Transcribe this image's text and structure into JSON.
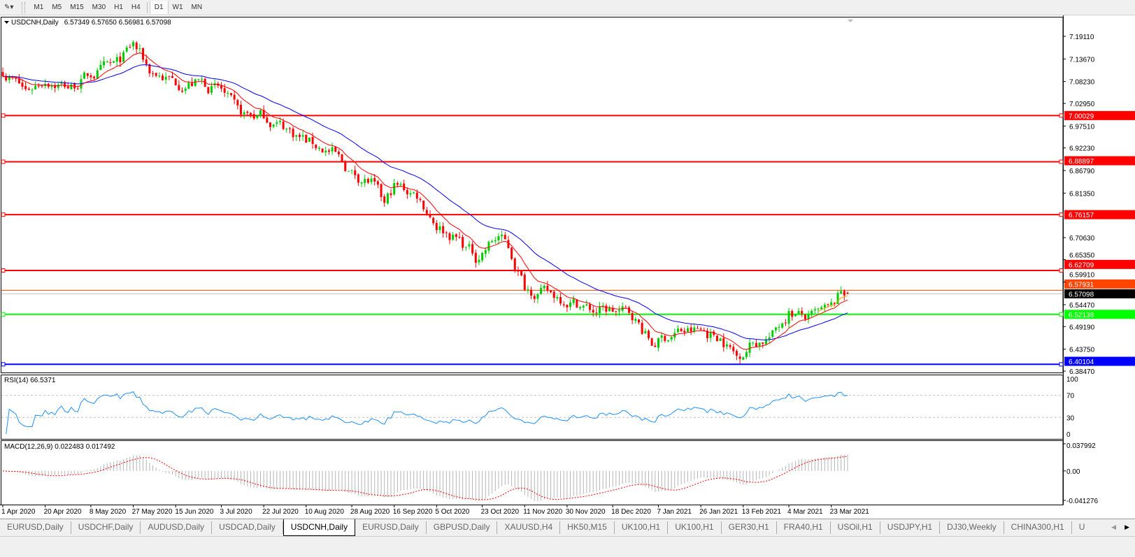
{
  "toolbar": {
    "timeframes": [
      "M1",
      "M5",
      "M15",
      "M30",
      "H1",
      "H4",
      "D1",
      "W1",
      "MN"
    ],
    "active_timeframe": "D1"
  },
  "chart": {
    "header": "USDCNH,Daily",
    "ohlc": "6.57349 6.57650 6.56981 6.57098",
    "price_axis": [
      "7.19110",
      "7.13670",
      "7.08230",
      "7.02950",
      "6.97510",
      "6.92230",
      "6.86790",
      "6.81350",
      "6.70630",
      "6.65350",
      "6.59910",
      "6.54470",
      "6.49190",
      "6.43750",
      "6.38470"
    ],
    "levels": [
      {
        "label": "7.00029",
        "color": "#ff0000"
      },
      {
        "label": "6.88897",
        "color": "#ff0000"
      },
      {
        "label": "6.76157",
        "color": "#ff0000"
      },
      {
        "label": "6.62709",
        "color": "#ff0000"
      },
      {
        "label": "6.57931",
        "color": "#ff4500"
      },
      {
        "label": "6.57098",
        "color": "#000000"
      },
      {
        "label": "6.52138",
        "color": "#00ff00"
      },
      {
        "label": "6.40104",
        "color": "#0000ff"
      }
    ],
    "colors": {
      "bull": "#00cc00",
      "bear": "#ff0000",
      "ma_fast": "#ff0000",
      "ma_slow": "#0000ff",
      "ma_short": "#ffa500",
      "rsi": "#1e90ff",
      "macd_hist": "#b4b4b4",
      "macd_signal": "#ff0000"
    }
  },
  "rsi": {
    "label": "RSI(14) 66.5371",
    "axis": [
      "100",
      "70",
      "30",
      "0"
    ]
  },
  "macd": {
    "label": "MACD(12,26,9) 0.022483 0.017492",
    "axis": [
      "0.037992",
      "0.00",
      "-0.041276"
    ]
  },
  "chart_data": {
    "type": "candlestick",
    "symbol": "USDCNH",
    "timeframe": "Daily",
    "last_bar": {
      "open": 6.57349,
      "high": 6.5765,
      "low": 6.56981,
      "close": 6.57098
    },
    "ylim": [
      6.3847,
      7.1911
    ],
    "approx_closes": [
      [
        "2020-04-01",
        7.11
      ],
      [
        "2020-04-10",
        7.06
      ],
      [
        "2020-04-20",
        7.09
      ],
      [
        "2020-04-30",
        7.07
      ],
      [
        "2020-05-08",
        7.1
      ],
      [
        "2020-05-20",
        7.12
      ],
      [
        "2020-05-27",
        7.17
      ],
      [
        "2020-06-03",
        7.11
      ],
      [
        "2020-06-15",
        7.08
      ],
      [
        "2020-06-25",
        7.08
      ],
      [
        "2020-07-03",
        7.06
      ],
      [
        "2020-07-10",
        7.0
      ],
      [
        "2020-07-22",
        7.0
      ],
      [
        "2020-07-31",
        6.97
      ],
      [
        "2020-08-10",
        6.94
      ],
      [
        "2020-08-20",
        6.91
      ],
      [
        "2020-08-28",
        6.86
      ],
      [
        "2020-09-07",
        6.84
      ],
      [
        "2020-09-11",
        6.78
      ],
      [
        "2020-09-16",
        6.83
      ],
      [
        "2020-09-25",
        6.81
      ],
      [
        "2020-10-05",
        6.74
      ],
      [
        "2020-10-14",
        6.7
      ],
      [
        "2020-10-21",
        6.66
      ],
      [
        "2020-10-30",
        6.71
      ],
      [
        "2020-11-04",
        6.68
      ],
      [
        "2020-11-11",
        6.59
      ],
      [
        "2020-11-20",
        6.57
      ],
      [
        "2020-11-30",
        6.56
      ],
      [
        "2020-12-10",
        6.53
      ],
      [
        "2020-12-18",
        6.53
      ],
      [
        "2020-12-28",
        6.52
      ],
      [
        "2021-01-05",
        6.45
      ],
      [
        "2021-01-15",
        6.48
      ],
      [
        "2021-01-26",
        6.48
      ],
      [
        "2021-02-03",
        6.47
      ],
      [
        "2021-02-10",
        6.42
      ],
      [
        "2021-02-16",
        6.45
      ],
      [
        "2021-02-25",
        6.47
      ],
      [
        "2021-03-04",
        6.53
      ],
      [
        "2021-03-12",
        6.51
      ],
      [
        "2021-03-23",
        6.53
      ],
      [
        "2021-03-26",
        6.57
      ],
      [
        "2021-03-30",
        6.571
      ]
    ],
    "x_ticks": [
      "1 Apr 2020",
      "20 Apr 2020",
      "8 May 2020",
      "27 May 2020",
      "15 Jun 2020",
      "3 Jul 2020",
      "22 Jul 2020",
      "10 Aug 2020",
      "28 Aug 2020",
      "16 Sep 2020",
      "5 Oct 2020",
      "23 Oct 2020",
      "11 Nov 2020",
      "30 Nov 2020",
      "18 Dec 2020",
      "7 Jan 2021",
      "26 Jan 2021",
      "13 Feb 2021",
      "4 Mar 2021",
      "23 Mar 2021"
    ],
    "indicators": [
      "MA fast",
      "MA slow",
      "MA short",
      "RSI(14)",
      "MACD(12,26,9)"
    ]
  },
  "tabs": [
    "EURUSD,Daily",
    "USDCHF,Daily",
    "AUDUSD,Daily",
    "USDCAD,Daily",
    "USDCNH,Daily",
    "EURUSD,Daily",
    "GBPUSD,Daily",
    "XAUUSD,H4",
    "HK50,M15",
    "UK100,H1",
    "UK100,H1",
    "GER30,H1",
    "FRA40,H1",
    "USOil,H1",
    "USDJPY,H1",
    "DJ30,Weekly",
    "CHINA300,H1",
    "U"
  ],
  "active_tab": "USDCNH,Daily"
}
